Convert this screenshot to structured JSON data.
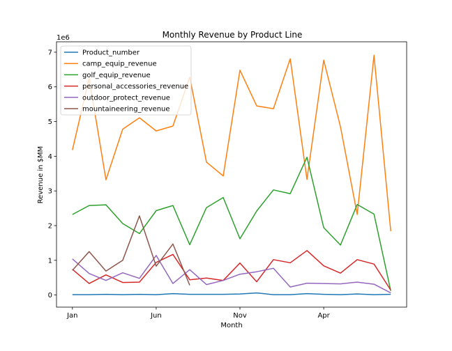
{
  "chart_data": {
    "type": "line",
    "title": "Monthly Revenue by Product Line",
    "xlabel": "Month",
    "ylabel": "Revenue in $MM",
    "y_scale_label": "1e6",
    "x_ticks": [
      {
        "x": 0,
        "label": "Jan"
      },
      {
        "x": 5,
        "label": "Jun"
      },
      {
        "x": 10,
        "label": "Nov"
      },
      {
        "x": 15,
        "label": "Apr"
      }
    ],
    "y_ticks": [
      0,
      1,
      2,
      3,
      4,
      5,
      6,
      7
    ],
    "xlim": [
      -0.95,
      19.95
    ],
    "ylim": [
      -0.35,
      7.3
    ],
    "grid": false,
    "legend_position": "top-left",
    "x": [
      0,
      1,
      2,
      3,
      4,
      5,
      6,
      7,
      8,
      9,
      10,
      11,
      12,
      13,
      14,
      15,
      16,
      17,
      18,
      19
    ],
    "series": [
      {
        "name": "Product_number",
        "color": "#1f77b4",
        "values": [
          0.01,
          0.01,
          0.02,
          0.01,
          0.02,
          0.01,
          0.04,
          0.02,
          0.02,
          0.02,
          0.03,
          0.06,
          0.01,
          0.01,
          0.04,
          0.02,
          0.01,
          0.03,
          0.01,
          0.02
        ]
      },
      {
        "name": "camp_equip_revenue",
        "color": "#ff7f0e",
        "values": [
          4.18,
          6.25,
          3.32,
          4.78,
          5.11,
          4.73,
          4.87,
          6.28,
          3.83,
          3.43,
          6.48,
          5.45,
          5.37,
          6.81,
          3.33,
          6.77,
          4.85,
          2.32,
          6.91,
          1.84
        ]
      },
      {
        "name": "golf_equip_revenue",
        "color": "#2ca02c",
        "values": [
          2.32,
          2.58,
          2.6,
          2.06,
          1.77,
          2.43,
          2.58,
          1.45,
          2.52,
          2.81,
          1.62,
          2.42,
          3.03,
          2.92,
          3.97,
          1.94,
          1.44,
          2.61,
          2.33,
          0.12
        ]
      },
      {
        "name": "personal_accessories_revenue",
        "color": "#d62728",
        "values": [
          0.74,
          0.33,
          0.58,
          0.36,
          0.37,
          0.94,
          1.17,
          0.44,
          0.49,
          0.42,
          0.92,
          0.38,
          1.02,
          0.93,
          1.28,
          0.84,
          0.63,
          1.02,
          0.89,
          0.14
        ]
      },
      {
        "name": "outdoor_protect_revenue",
        "color": "#9467bd",
        "values": [
          1.04,
          0.62,
          0.42,
          0.64,
          0.48,
          1.14,
          0.33,
          0.73,
          0.3,
          0.42,
          0.6,
          0.67,
          0.77,
          0.23,
          0.34,
          0.33,
          0.32,
          0.37,
          0.31,
          0.06
        ]
      },
      {
        "name": "mountaineering_revenue",
        "color": "#8c564b",
        "x": [
          0,
          1,
          2,
          3,
          4,
          5,
          6,
          7
        ],
        "values": [
          0.71,
          1.25,
          0.69,
          1.0,
          2.28,
          0.83,
          1.47,
          0.28
        ]
      }
    ]
  }
}
